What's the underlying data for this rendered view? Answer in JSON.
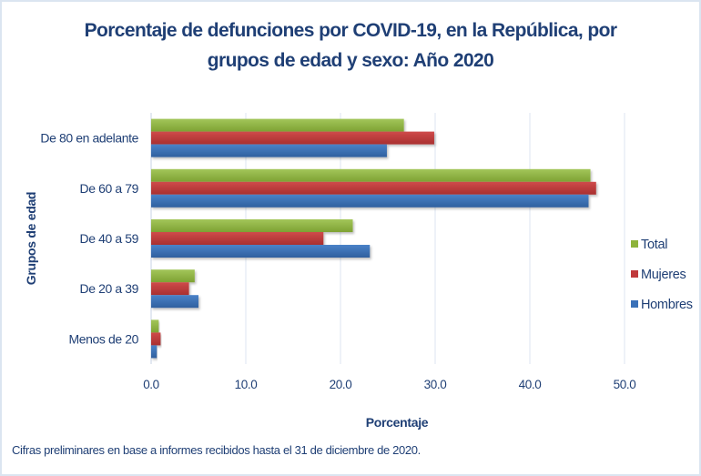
{
  "chart_data": {
    "type": "bar",
    "orientation": "horizontal",
    "title": "Porcentaje de defunciones por COVID-19, en la República, por grupos de edad y sexo:  Año 2020",
    "title_lines": [
      "Porcentaje de defunciones por COVID-19, en la República, por",
      "grupos de edad y sexo:  Año 2020"
    ],
    "xlabel": "Porcentaje",
    "ylabel": "Grupos de edad",
    "categories": [
      "De 80 en adelante",
      "De 60 a 79",
      "De 40 a 59",
      "De 20 a 39",
      "Menos de 20"
    ],
    "series": [
      {
        "name": "Total",
        "color": "#8db33a",
        "values": [
          26.7,
          46.4,
          21.3,
          4.6,
          0.8
        ]
      },
      {
        "name": "Mujeres",
        "color": "#c0393b",
        "values": [
          29.9,
          47.0,
          18.2,
          4.0,
          1.0
        ]
      },
      {
        "name": "Hombres",
        "color": "#3a71b8",
        "values": [
          24.9,
          46.2,
          23.1,
          5.0,
          0.6
        ]
      }
    ],
    "xlim": [
      0,
      50
    ],
    "xticks": [
      "0.0",
      "10.0",
      "20.0",
      "30.0",
      "40.0",
      "50.0"
    ],
    "xtick_values": [
      0,
      10,
      20,
      30,
      40,
      50
    ],
    "grid": true,
    "legend_position": "right",
    "legend_order": [
      "Total",
      "Mujeres",
      "Hombres"
    ],
    "footnote": "Cifras preliminares en base a informes recibidos hasta el 31 de diciembre de 2020."
  }
}
